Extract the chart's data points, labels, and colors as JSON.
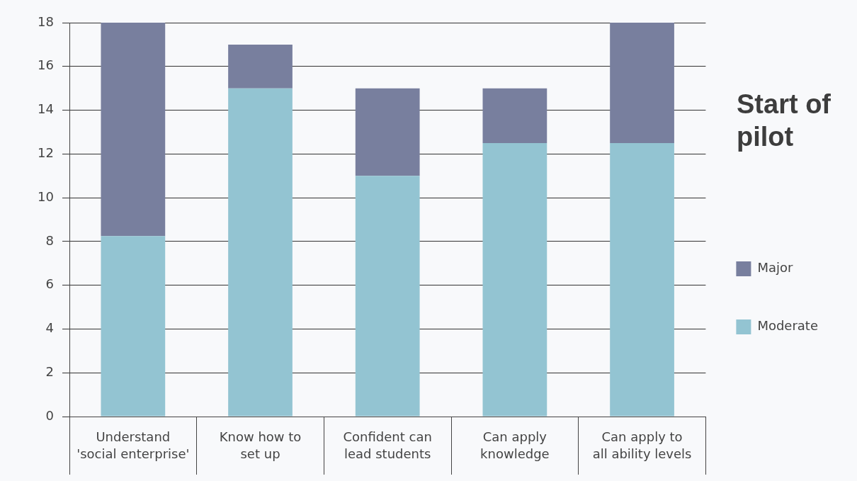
{
  "chart_data": {
    "type": "bar",
    "title": "Start of pilot",
    "categories": [
      "Understand\n'social enterprise'",
      "Know how to\nset up",
      "Confident can\nlead students",
      "Can apply\nknowledge",
      "Can apply to\nall ability levels"
    ],
    "stacked": true,
    "series": [
      {
        "name": "Moderate",
        "color": "#93c4d2",
        "values": [
          8.25,
          15,
          11,
          12.5,
          12.5
        ]
      },
      {
        "name": "Major",
        "color": "#787f9e",
        "values": [
          9.75,
          2,
          4,
          2.5,
          5.5
        ]
      }
    ],
    "ylim": [
      0,
      18
    ],
    "yticks": [
      0,
      2,
      4,
      6,
      8,
      10,
      12,
      14,
      16,
      18
    ],
    "grid": "y",
    "legend": "right"
  }
}
